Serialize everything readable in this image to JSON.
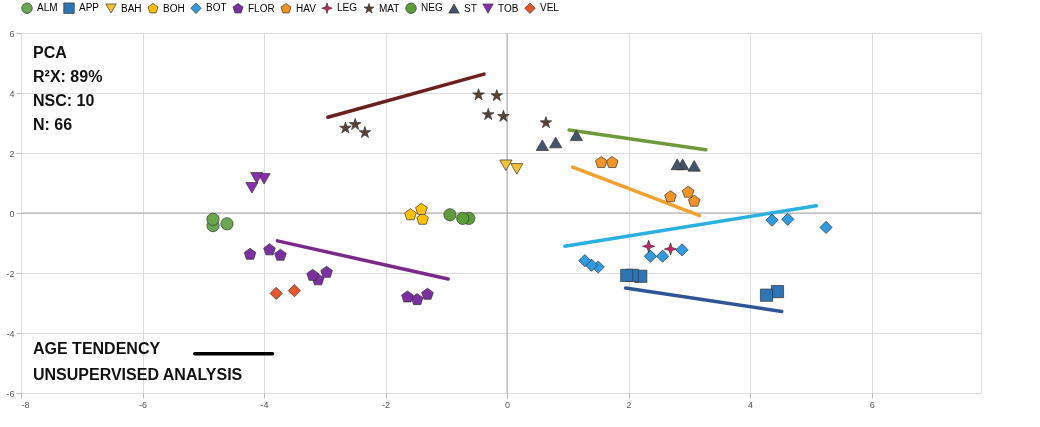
{
  "chart_data": {
    "type": "scatter",
    "xlim": [
      -8,
      7.8
    ],
    "ylim": [
      -6,
      6
    ],
    "xticks": [
      -8,
      -6,
      -4,
      -2,
      0,
      2,
      4,
      6
    ],
    "yticks": [
      -6,
      -4,
      -2,
      0,
      2,
      4,
      6
    ],
    "grid": true,
    "legend": "top",
    "annotations": [
      "PCA",
      "R²X: 89%",
      "NSC: 10",
      "N: 66",
      "AGE TENDENCY",
      "UNSUPERVISED ANALYSIS"
    ],
    "series": [
      {
        "name": "ALM",
        "color": "#6aa84f",
        "marker": "circle",
        "x": [
          -4.84,
          -4.84,
          -4.61
        ],
        "values": [
          -0.21,
          -0.42,
          -0.36
        ]
      },
      {
        "name": "APP",
        "color": "#2e75b6",
        "marker": "square",
        "x": [
          1.97,
          2.06,
          2.2,
          4.27,
          4.45
        ],
        "values": [
          -2.08,
          -2.08,
          -2.11,
          -2.74,
          -2.62
        ]
      },
      {
        "name": "BAH",
        "color": "#f2c230",
        "marker": "triangle-down",
        "x": [
          -0.02,
          0.16
        ],
        "values": [
          1.59,
          1.47
        ]
      },
      {
        "name": "BOH",
        "color": "#ffc000",
        "x": [
          -1.59,
          -1.41,
          -1.39
        ],
        "values": [
          -0.06,
          0.12,
          -0.21
        ]
      },
      {
        "name": "BOT",
        "color": "#2f9be0",
        "marker": "diamond",
        "x": [
          4.36,
          4.62,
          5.25,
          1.28,
          1.39,
          1.5,
          2.36,
          2.56,
          2.88
        ],
        "values": [
          -0.24,
          -0.21,
          -0.48,
          -1.59,
          -1.74,
          -1.8,
          -1.44,
          -1.44,
          -1.23
        ]
      },
      {
        "name": "FLOR",
        "color": "#7b2fa0",
        "x": [
          -4.23,
          -3.91,
          -3.73,
          -3.2,
          -3.11,
          -2.97,
          -1.64,
          -1.48,
          -1.31
        ],
        "values": [
          -1.38,
          -1.23,
          -1.41,
          -2.08,
          -2.23,
          -1.98,
          -2.8,
          -2.89,
          -2.71
        ]
      },
      {
        "name": "HAV",
        "color": "#f39323",
        "x": [
          1.55,
          1.73,
          2.69,
          2.98,
          3.08
        ],
        "values": [
          1.68,
          1.68,
          0.54,
          0.69,
          0.39
        ]
      },
      {
        "name": "LEG",
        "color": "#cc2266",
        "marker": "star4",
        "x": [
          2.33,
          2.69
        ],
        "values": [
          -1.11,
          -1.2
        ]
      },
      {
        "name": "MAT",
        "color": "#5c4033",
        "marker": "star",
        "x": [
          -2.66,
          -2.5,
          -2.34,
          -0.47,
          -0.17,
          -0.31,
          -0.06,
          0.64
        ],
        "values": [
          2.83,
          2.95,
          2.68,
          3.94,
          3.91,
          3.28,
          3.22,
          3.01
        ]
      },
      {
        "name": "NEG",
        "color": "#5e9e3a",
        "marker": "circle",
        "x": [
          -0.94,
          -0.73,
          -0.63
        ],
        "values": [
          -0.06,
          -0.18,
          -0.18
        ]
      },
      {
        "name": "ST",
        "color": "#44546a",
        "marker": "triangle",
        "x": [
          0.58,
          0.8,
          1.14,
          2.8,
          2.89,
          3.08
        ],
        "values": [
          2.26,
          2.35,
          2.59,
          1.62,
          1.62,
          1.57
        ]
      },
      {
        "name": "TOB",
        "color": "#8a2bb0",
        "marker": "triangle-down",
        "x": [
          -4.2,
          -4.12,
          -4.0
        ],
        "values": [
          0.84,
          1.17,
          1.14
        ]
      },
      {
        "name": "VEL",
        "color": "#e8562a",
        "marker": "diamond",
        "x": [
          -3.8,
          -3.5
        ],
        "values": [
          -2.68,
          -2.59
        ]
      },
      {
        "type": "line",
        "color": "#6b1f1f",
        "x": [
          -2.95,
          -0.38
        ],
        "values": [
          3.19,
          4.63
        ]
      },
      {
        "type": "line",
        "color": "#7a2a8a",
        "x": [
          -3.78,
          -0.97
        ],
        "values": [
          -0.93,
          -2.2
        ]
      },
      {
        "type": "line",
        "color": "#6f9a3a",
        "x": [
          1.02,
          3.27
        ],
        "values": [
          2.77,
          2.11
        ]
      },
      {
        "type": "line",
        "color": "#f2a030",
        "x": [
          1.08,
          3.17
        ],
        "values": [
          1.53,
          -0.09
        ]
      },
      {
        "type": "line",
        "color": "#2ab0e0",
        "x": [
          0.95,
          5.09
        ],
        "values": [
          -1.11,
          0.24
        ]
      },
      {
        "type": "line",
        "color": "#2f5597",
        "x": [
          1.95,
          4.52
        ],
        "values": [
          -2.5,
          -3.28
        ]
      },
      {
        "type": "line",
        "color": "#000000",
        "x": [
          -5.14,
          -3.86
        ],
        "values": [
          -4.69,
          -4.69
        ]
      }
    ]
  }
}
